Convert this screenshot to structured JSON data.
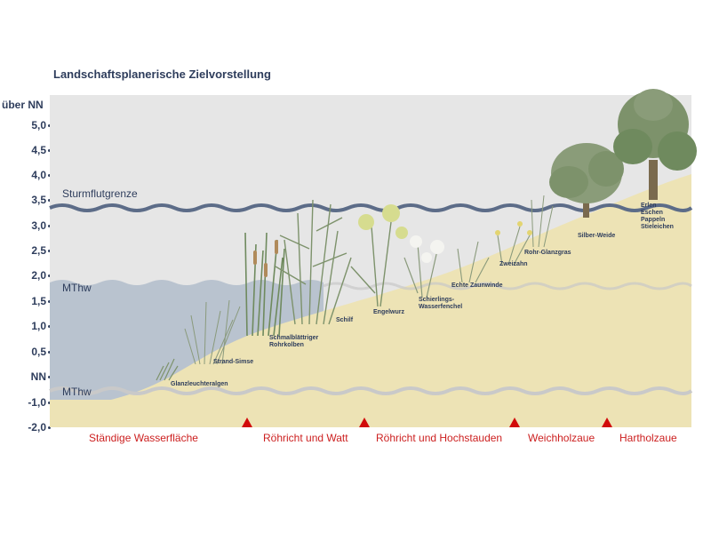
{
  "title": "Landschaftsplanerische Zielvorstellung",
  "y_axis": {
    "label": "über NN",
    "ticks": [
      "5,0",
      "4,5",
      "4,0",
      "3,5",
      "3,0",
      "2,5",
      "2,0",
      "1,5",
      "1,0",
      "0,5",
      "NN",
      "-1,0",
      "-2,0"
    ]
  },
  "water_levels": {
    "storm": "Sturmflutgrenze",
    "mthw": "MThw",
    "mtnw": "MThw"
  },
  "plants": [
    {
      "id": "glanzleuchteralgen",
      "lines": [
        "Glanzleuchteralgen"
      ]
    },
    {
      "id": "strand-simse",
      "lines": [
        "Strand-Simse"
      ]
    },
    {
      "id": "rohrkolben",
      "lines": [
        "Schmalblättriger",
        "Rohrkolben"
      ]
    },
    {
      "id": "schilf",
      "lines": [
        "Schilf"
      ]
    },
    {
      "id": "engelwurz",
      "lines": [
        "Engelwurz"
      ]
    },
    {
      "id": "wasserfenchel",
      "lines": [
        "Schierlings-",
        "Wasserfenchel"
      ]
    },
    {
      "id": "zaunwinde",
      "lines": [
        "Echte Zaunwinde"
      ]
    },
    {
      "id": "zweizahn",
      "lines": [
        "Zweizahn"
      ]
    },
    {
      "id": "glanzgras",
      "lines": [
        "Rohr-Glanzgras"
      ]
    },
    {
      "id": "silberweide",
      "lines": [
        "Silber-Weide"
      ]
    },
    {
      "id": "hartholz",
      "lines": [
        "Erlen",
        "Eschen",
        "Pappeln",
        "Stieleichen"
      ]
    }
  ],
  "zones": [
    "Ständige Wasserfläche",
    "Röhricht und Watt",
    "Röhricht und Hochstauden",
    "Weichholzaue",
    "Hartholzaue"
  ],
  "colors": {
    "panel": "#e6e6e6",
    "water": "#b9c3cf",
    "land": "#ede3b5",
    "storm_wave": "#5c6c88",
    "text": "#2e3d5c",
    "zone_text": "#cc1f1f",
    "marker": "#d10a0a",
    "tree": "#7d926b"
  }
}
